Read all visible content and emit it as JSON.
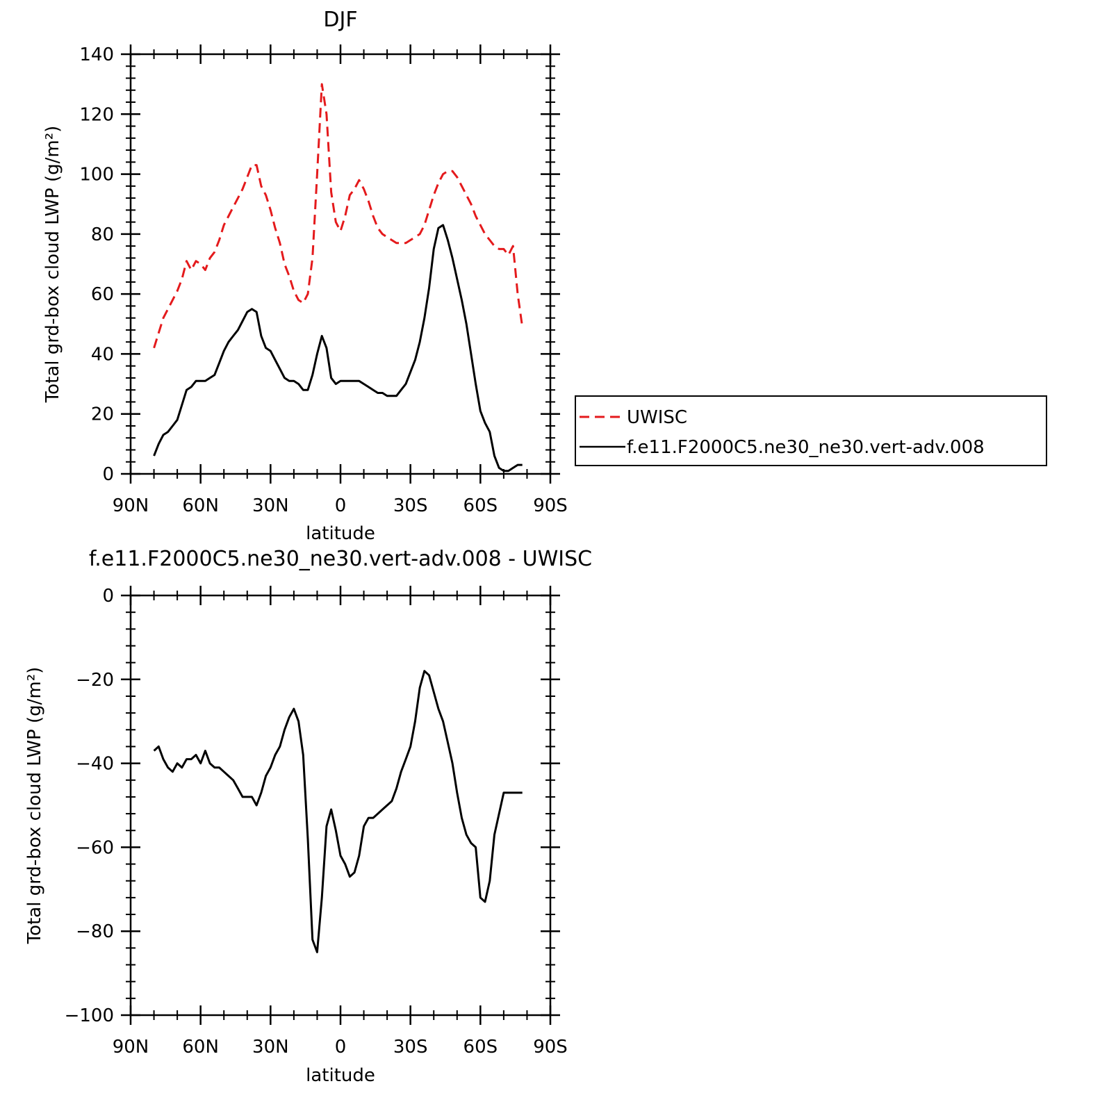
{
  "chart_data": [
    {
      "type": "line",
      "title": "DJF",
      "xlabel": "latitude",
      "ylabel": "Total grd-box cloud LWP (g/m²)",
      "xlim": [
        90,
        -90
      ],
      "ylim": [
        0,
        140
      ],
      "grid": false,
      "x_tick_values": [
        90,
        60,
        30,
        0,
        -30,
        -60,
        -90
      ],
      "x_tick_labels": [
        "90N",
        "60N",
        "30N",
        "0",
        "30S",
        "60S",
        "90S"
      ],
      "y_tick_values": [
        0,
        20,
        40,
        60,
        80,
        100,
        120,
        140
      ],
      "y_tick_labels": [
        "0",
        "20",
        "40",
        "60",
        "80",
        "100",
        "120",
        "140"
      ],
      "legend": {
        "position": "right"
      },
      "series": [
        {
          "name": "UWISC",
          "color": "#e41a1c",
          "dash": "dashed",
          "x": [
            80,
            78,
            76,
            74,
            72,
            70,
            68,
            66,
            64,
            62,
            60,
            58,
            56,
            54,
            52,
            50,
            48,
            46,
            44,
            42,
            40,
            38,
            36,
            34,
            32,
            30,
            28,
            26,
            24,
            22,
            20,
            18,
            16,
            14,
            12,
            10,
            8,
            6,
            4,
            2,
            0,
            -2,
            -4,
            -6,
            -8,
            -10,
            -12,
            -14,
            -16,
            -18,
            -20,
            -22,
            -24,
            -26,
            -28,
            -30,
            -32,
            -34,
            -36,
            -38,
            -40,
            -42,
            -44,
            -46,
            -48,
            -50,
            -52,
            -54,
            -56,
            -58,
            -60,
            -62,
            -64,
            -66,
            -68,
            -70,
            -72,
            -74,
            -76,
            -78
          ],
          "y": [
            42,
            47,
            52,
            55,
            58,
            61,
            65,
            71,
            68,
            71,
            70,
            68,
            72,
            74,
            78,
            83,
            86,
            89,
            92,
            95,
            99,
            103,
            103,
            96,
            93,
            88,
            82,
            77,
            70,
            66,
            61,
            58,
            57,
            60,
            72,
            100,
            130,
            120,
            94,
            84,
            81,
            86,
            93,
            95,
            98,
            95,
            91,
            86,
            82,
            80,
            79,
            78,
            77,
            77,
            77,
            78,
            79,
            80,
            83,
            88,
            93,
            97,
            100,
            101,
            101,
            99,
            96,
            93,
            90,
            86,
            83,
            80,
            78,
            76,
            75,
            75,
            73,
            76,
            60,
            49
          ]
        },
        {
          "name": "f.e11.F2000C5.ne30_ne30.vert-adv.008",
          "color": "#000000",
          "dash": "solid",
          "x": [
            80,
            78,
            76,
            74,
            72,
            70,
            68,
            66,
            64,
            62,
            60,
            58,
            56,
            54,
            52,
            50,
            48,
            46,
            44,
            42,
            40,
            38,
            36,
            34,
            32,
            30,
            28,
            26,
            24,
            22,
            20,
            18,
            16,
            14,
            12,
            10,
            8,
            6,
            4,
            2,
            0,
            -2,
            -4,
            -6,
            -8,
            -10,
            -12,
            -14,
            -16,
            -18,
            -20,
            -22,
            -24,
            -26,
            -28,
            -30,
            -32,
            -34,
            -36,
            -38,
            -40,
            -42,
            -44,
            -46,
            -48,
            -50,
            -52,
            -54,
            -56,
            -58,
            -60,
            -62,
            -64,
            -66,
            -68,
            -70,
            -72,
            -74,
            -76,
            -78
          ],
          "y": [
            6,
            10,
            13,
            14,
            16,
            18,
            23,
            28,
            29,
            31,
            31,
            31,
            32,
            33,
            37,
            41,
            44,
            46,
            48,
            51,
            54,
            55,
            54,
            46,
            42,
            41,
            38,
            35,
            32,
            31,
            31,
            30,
            28,
            28,
            33,
            40,
            46,
            42,
            32,
            30,
            31,
            31,
            31,
            31,
            31,
            30,
            29,
            28,
            27,
            27,
            26,
            26,
            26,
            28,
            30,
            34,
            38,
            44,
            52,
            62,
            75,
            82,
            83,
            78,
            72,
            65,
            58,
            50,
            40,
            30,
            21,
            17,
            14,
            6,
            2,
            1,
            1,
            2,
            3,
            3
          ]
        }
      ]
    },
    {
      "type": "line",
      "title": "f.e11.F2000C5.ne30_ne30.vert-adv.008 - UWISC",
      "xlabel": "latitude",
      "ylabel": "Total grd-box cloud LWP (g/m²)",
      "xlim": [
        90,
        -90
      ],
      "ylim": [
        -100,
        0
      ],
      "grid": false,
      "x_tick_values": [
        90,
        60,
        30,
        0,
        -30,
        -60,
        -90
      ],
      "x_tick_labels": [
        "90N",
        "60N",
        "30N",
        "0",
        "30S",
        "60S",
        "90S"
      ],
      "y_tick_values": [
        0,
        -20,
        -40,
        -60,
        -80,
        -100
      ],
      "y_tick_labels": [
        "0",
        "−20",
        "−40",
        "−60",
        "−80",
        "−100"
      ],
      "series": [
        {
          "color": "#000000",
          "dash": "solid",
          "x": [
            80,
            78,
            76,
            74,
            72,
            70,
            68,
            66,
            64,
            62,
            60,
            58,
            56,
            54,
            52,
            50,
            48,
            46,
            44,
            42,
            40,
            38,
            36,
            34,
            32,
            30,
            28,
            26,
            24,
            22,
            20,
            18,
            16,
            14,
            12,
            10,
            8,
            6,
            4,
            2,
            0,
            -2,
            -4,
            -6,
            -8,
            -10,
            -12,
            -14,
            -16,
            -18,
            -20,
            -22,
            -24,
            -26,
            -28,
            -30,
            -32,
            -34,
            -36,
            -38,
            -40,
            -42,
            -44,
            -46,
            -48,
            -50,
            -52,
            -54,
            -56,
            -58,
            -60,
            -62,
            -64,
            -66,
            -68,
            -70,
            -72,
            -74,
            -76,
            -78
          ],
          "y": [
            -37,
            -36,
            -39,
            -41,
            -42,
            -40,
            -41,
            -39,
            -39,
            -38,
            -40,
            -37,
            -40,
            -41,
            -41,
            -42,
            -43,
            -44,
            -46,
            -48,
            -48,
            -48,
            -50,
            -47,
            -43,
            -41,
            -38,
            -36,
            -32,
            -29,
            -27,
            -30,
            -38,
            -58,
            -82,
            -85,
            -72,
            -55,
            -51,
            -56,
            -62,
            -64,
            -67,
            -66,
            -62,
            -55,
            -53,
            -53,
            -52,
            -51,
            -50,
            -49,
            -46,
            -42,
            -39,
            -36,
            -30,
            -22,
            -18,
            -19,
            -23,
            -27,
            -30,
            -35,
            -40,
            -47,
            -53,
            -57,
            -59,
            -60,
            -72,
            -73,
            -68,
            -57,
            -52,
            -47,
            -47,
            -47,
            -47,
            -47
          ]
        }
      ]
    }
  ]
}
